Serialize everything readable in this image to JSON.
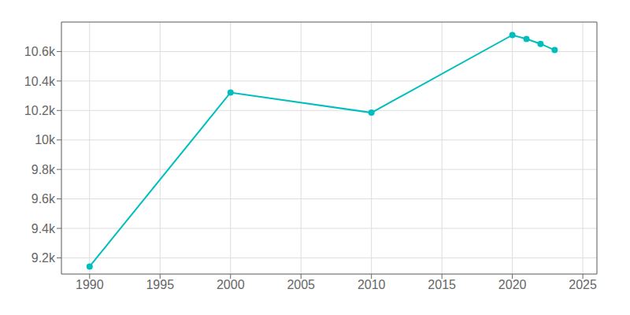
{
  "chart_data": {
    "type": "line",
    "x": [
      1990,
      2000,
      2010,
      2020,
      2021,
      2022,
      2023
    ],
    "values": [
      9141,
      10322,
      10185,
      10712,
      10685,
      10652,
      10610
    ],
    "color": "#00BEBE",
    "marker": "circle",
    "xlim": [
      1988,
      2026
    ],
    "ylim": [
      9090,
      10800
    ],
    "xticks": [
      1990,
      1995,
      2000,
      2005,
      2010,
      2015,
      2020,
      2025
    ],
    "yticks": [
      {
        "value": 9200,
        "label": "9.2k"
      },
      {
        "value": 9400,
        "label": "9.4k"
      },
      {
        "value": 9600,
        "label": "9.6k"
      },
      {
        "value": 9800,
        "label": "9.8k"
      },
      {
        "value": 10000,
        "label": "10k"
      },
      {
        "value": 10200,
        "label": "10.2k"
      },
      {
        "value": 10400,
        "label": "10.4k"
      },
      {
        "value": 10600,
        "label": "10.6k"
      }
    ],
    "grid": true
  }
}
